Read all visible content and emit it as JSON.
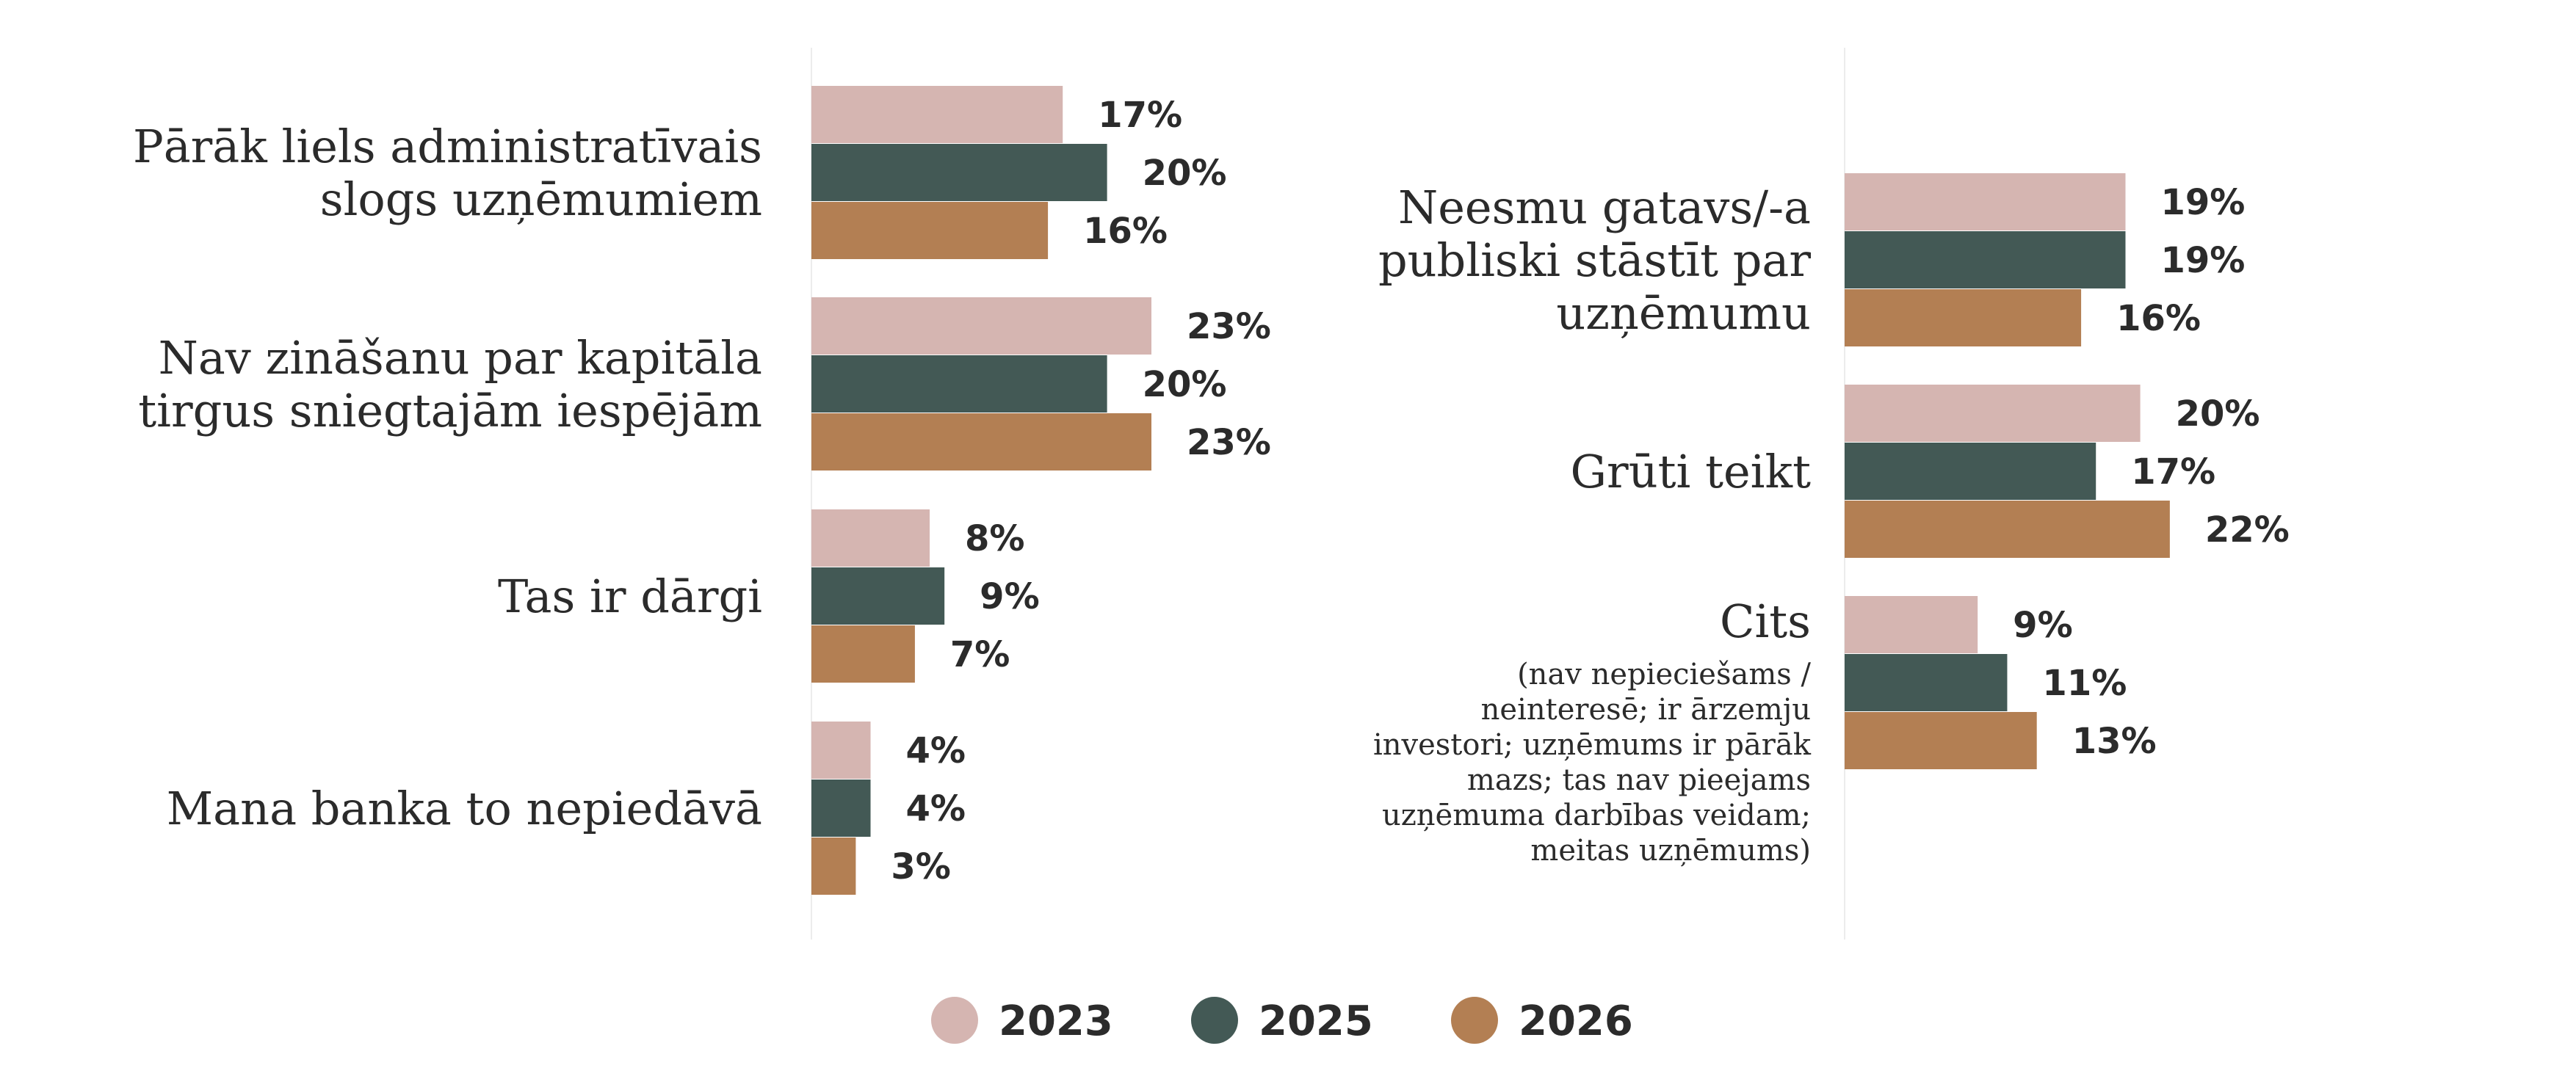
{
  "chart_data": {
    "type": "bar",
    "orientation": "horizontal",
    "legend": {
      "placement": "bottom",
      "items": [
        {
          "label": "2023",
          "color": "#d5b5b1"
        },
        {
          "label": "2025",
          "color": "#435955"
        },
        {
          "label": "2026",
          "color": "#b37f53"
        }
      ]
    },
    "unit": "%",
    "xlim": [
      0,
      23
    ],
    "panels": [
      {
        "categories": [
          {
            "lines": [
              "Pārāk liels administratīvais",
              "slogs uzņēmumiem"
            ],
            "values": [
              17,
              20,
              16
            ]
          },
          {
            "lines": [
              "Nav zināšanu par kapitāla",
              "tirgus sniegtajām iespējām"
            ],
            "values": [
              23,
              20,
              23
            ]
          },
          {
            "lines": [
              "Tas ir dārgi"
            ],
            "values": [
              8,
              9,
              7
            ]
          },
          {
            "lines": [
              "Mana banka to nepiedāvā"
            ],
            "values": [
              4,
              4,
              3
            ]
          }
        ]
      },
      {
        "categories": [
          {
            "lines": [
              "Neesmu gatavs/-a",
              "publiski stāstīt par",
              "uzņēmumu"
            ],
            "values": [
              19,
              19,
              16
            ]
          },
          {
            "lines": [
              "Grūti teikt"
            ],
            "values": [
              20,
              17,
              22
            ]
          },
          {
            "lines": [
              "Cits"
            ],
            "sublines": [
              "(nav nepieciešams /",
              "neinteresē; ir ārzemju",
              "investori; uzņēmums ir pārāk",
              "mazs; tas nav pieejams",
              "uzņēmuma darbības veidam;",
              "meitas uzņēmums)"
            ],
            "values": [
              9,
              11,
              13
            ]
          }
        ]
      }
    ]
  }
}
